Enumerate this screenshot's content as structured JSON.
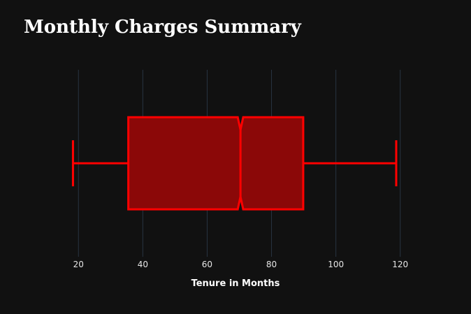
{
  "chart_data": {
    "type": "box",
    "title": "Monthly Charges Summary",
    "xlabel": "Tenure in Months",
    "ylabel": "",
    "orientation": "horizontal",
    "notched": true,
    "xlim": [
      8,
      132
    ],
    "x_ticks": [
      20,
      40,
      60,
      80,
      100,
      120
    ],
    "grid": true,
    "stats": {
      "min": 18.3,
      "q1": 35.5,
      "median": 70.35,
      "q3": 89.85,
      "max": 118.75,
      "notch_low": 69.5,
      "notch_high": 71.2
    },
    "colors": {
      "background": "#111111",
      "grid": "#283442",
      "box_fill": "#8b0808",
      "box_line": "#ff0000",
      "text": "#ffffff"
    }
  }
}
